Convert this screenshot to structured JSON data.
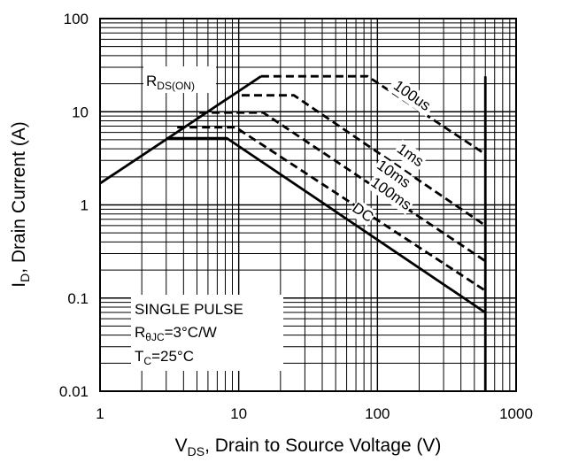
{
  "chart_data": {
    "type": "line",
    "x_scale": "log",
    "y_scale": "log",
    "xlim": [
      1,
      1000
    ],
    "ylim": [
      0.01,
      100
    ],
    "grid": true,
    "x_ticks": [
      "1",
      "10",
      "100",
      "1000"
    ],
    "y_ticks": [
      "0.01",
      "0.1",
      "1",
      "10",
      "100"
    ],
    "xlabel": {
      "main": "V",
      "sub": "DS",
      "rest": ", Drain to Source Voltage (V)"
    },
    "ylabel": {
      "main": "I",
      "sub": "D",
      "rest": ", Drain Current (A)"
    },
    "rds_label": {
      "main": "R",
      "sub": "DS(ON)"
    },
    "annotations": {
      "line1": "SINGLE PULSE",
      "line2_main": "R",
      "line2_sub": "θJC",
      "line2_rest": "=3°C/W",
      "line3_main": "T",
      "line3_sub": "C",
      "line3_rest": "=25°C"
    },
    "rds_line": {
      "x": [
        1,
        14.5
      ],
      "y": [
        1.7,
        24
      ]
    },
    "vmax": 600,
    "series": [
      {
        "name": "100us",
        "style": "dashed",
        "x": [
          14.5,
          85,
          600
        ],
        "y": [
          24,
          24,
          3.5
        ]
      },
      {
        "name": "1ms",
        "style": "dashed",
        "x": [
          10.5,
          25,
          600
        ],
        "y": [
          15,
          15,
          0.6
        ]
      },
      {
        "name": "10ms",
        "style": "dashed",
        "x": [
          5.2,
          15,
          600
        ],
        "y": [
          9.8,
          9.8,
          0.25
        ]
      },
      {
        "name": "100ms",
        "style": "dashed",
        "x": [
          3.6,
          9.5,
          600
        ],
        "y": [
          6.8,
          6.8,
          0.12
        ]
      },
      {
        "name": "DC",
        "style": "solid",
        "x": [
          3,
          8.2,
          600
        ],
        "y": [
          5.2,
          5.2,
          0.07
        ]
      }
    ],
    "series_labels": [
      {
        "text": "100us",
        "x": 170,
        "y": 13.5,
        "angle": 35
      },
      {
        "text": "1ms",
        "x": 165,
        "y": 3.1,
        "angle": 35
      },
      {
        "text": "10ms",
        "x": 125,
        "y": 1.95,
        "angle": 35
      },
      {
        "text": "100ms",
        "x": 120,
        "y": 1.2,
        "angle": 35
      },
      {
        "text": "DC",
        "x": 75,
        "y": 0.75,
        "angle": 35
      }
    ],
    "colors": {
      "line": "#000000",
      "grid": "#000000",
      "background": "#ffffff"
    }
  }
}
